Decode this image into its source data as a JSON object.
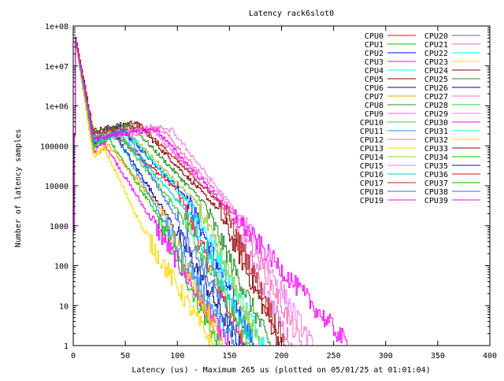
{
  "chart_data": {
    "type": "line",
    "title": "Latency rack6slot0",
    "xlabel": "Latency (us) - Maximum 265 us (plotted on 05/01/25 at 01:01:04)",
    "ylabel": "Number of latency samples",
    "xlim": [
      0,
      400
    ],
    "ylim": [
      1,
      100000000
    ],
    "yscale": "log",
    "grid": false,
    "legend_position": "top-right",
    "x_ticks": [
      0,
      50,
      100,
      150,
      200,
      250,
      300,
      350,
      400
    ],
    "y_ticks": [
      {
        "value": 1,
        "label": "1"
      },
      {
        "value": 10,
        "label": "10"
      },
      {
        "value": 100,
        "label": "100"
      },
      {
        "value": 1000,
        "label": "1000"
      },
      {
        "value": 10000,
        "label": "10000"
      },
      {
        "value": 100000,
        "label": "100000"
      },
      {
        "value": 1000000,
        "label": "1e+06"
      },
      {
        "value": 10000000,
        "label": "1e+07"
      },
      {
        "value": 100000000,
        "label": "1e+08"
      }
    ],
    "series": [
      {
        "name": "CPU0",
        "color": "#ff0000",
        "peak": 50000000,
        "shoulder_x": 40,
        "shoulder_y": 200000,
        "knee_x": 100,
        "knee_y": 8000,
        "max_x": 165
      },
      {
        "name": "CPU1",
        "color": "#00c000",
        "peak": 45000000,
        "shoulder_x": 35,
        "shoulder_y": 150000,
        "knee_x": 80,
        "knee_y": 2000,
        "max_x": 140
      },
      {
        "name": "CPU2",
        "color": "#0000ff",
        "peak": 48000000,
        "shoulder_x": 45,
        "shoulder_y": 300000,
        "knee_x": 110,
        "knee_y": 5000,
        "max_x": 175
      },
      {
        "name": "CPU3",
        "color": "#ff00ff",
        "peak": 42000000,
        "shoulder_x": 30,
        "shoulder_y": 120000,
        "knee_x": 75,
        "knee_y": 1500,
        "max_x": 150
      },
      {
        "name": "CPU4",
        "color": "#00ffff",
        "peak": 40000000,
        "shoulder_x": 50,
        "shoulder_y": 250000,
        "knee_x": 115,
        "knee_y": 3000,
        "max_x": 185
      },
      {
        "name": "CPU5",
        "color": "#8b0000",
        "peak": 52000000,
        "shoulder_x": 60,
        "shoulder_y": 400000,
        "knee_x": 140,
        "knee_y": 2500,
        "max_x": 200
      },
      {
        "name": "CPU6",
        "color": "#00008b",
        "peak": 47000000,
        "shoulder_x": 40,
        "shoulder_y": 200000,
        "knee_x": 95,
        "knee_y": 1200,
        "max_x": 160
      },
      {
        "name": "CPU7",
        "color": "#ffa500",
        "peak": 38000000,
        "shoulder_x": 35,
        "shoulder_y": 100000,
        "knee_x": 85,
        "knee_y": 2500,
        "max_x": 145
      },
      {
        "name": "CPU8",
        "color": "#228b22",
        "peak": 46000000,
        "shoulder_x": 55,
        "shoulder_y": 350000,
        "knee_x": 125,
        "knee_y": 4000,
        "max_x": 190
      },
      {
        "name": "CPU9",
        "color": "#da70d6",
        "peak": 44000000,
        "shoulder_x": 75,
        "shoulder_y": 300000,
        "knee_x": 150,
        "knee_y": 2000,
        "max_x": 210
      },
      {
        "name": "CPU10",
        "color": "#32cd32",
        "peak": 41000000,
        "shoulder_x": 45,
        "shoulder_y": 180000,
        "knee_x": 105,
        "knee_y": 1800,
        "max_x": 170
      },
      {
        "name": "CPU11",
        "color": "#1e90ff",
        "peak": 49000000,
        "shoulder_x": 40,
        "shoulder_y": 220000,
        "knee_x": 90,
        "knee_y": 1000,
        "max_x": 155
      },
      {
        "name": "CPU12",
        "color": "#ff69b4",
        "peak": 43000000,
        "shoulder_x": 85,
        "shoulder_y": 280000,
        "knee_x": 160,
        "knee_y": 1500,
        "max_x": 220
      },
      {
        "name": "CPU13",
        "color": "#ffd700",
        "peak": 36000000,
        "shoulder_x": 30,
        "shoulder_y": 90000,
        "knee_x": 70,
        "knee_y": 600,
        "max_x": 135
      },
      {
        "name": "CPU14",
        "color": "#9acd32",
        "peak": 45000000,
        "shoulder_x": 50,
        "shoulder_y": 260000,
        "knee_x": 120,
        "knee_y": 3500,
        "max_x": 180
      },
      {
        "name": "CPU15",
        "color": "#ee82ee",
        "peak": 47000000,
        "shoulder_x": 95,
        "shoulder_y": 250000,
        "knee_x": 165,
        "knee_y": 1200,
        "max_x": 230
      },
      {
        "name": "CPU16",
        "color": "#00ced1",
        "peak": 40000000,
        "shoulder_x": 45,
        "shoulder_y": 200000,
        "knee_x": 110,
        "knee_y": 2200,
        "max_x": 175
      },
      {
        "name": "CPU17",
        "color": "#b22222",
        "peak": 50000000,
        "shoulder_x": 65,
        "shoulder_y": 330000,
        "knee_x": 145,
        "knee_y": 3000,
        "max_x": 205
      },
      {
        "name": "CPU18",
        "color": "#4169e1",
        "peak": 44000000,
        "shoulder_x": 50,
        "shoulder_y": 240000,
        "knee_x": 100,
        "knee_y": 1500,
        "max_x": 165
      },
      {
        "name": "CPU19",
        "color": "#ff00ff",
        "peak": 42000000,
        "shoulder_x": 80,
        "shoulder_y": 260000,
        "knee_x": 155,
        "knee_y": 1800,
        "max_x": 265
      }
    ]
  },
  "legend_left": [
    "CPU0",
    "CPU1",
    "CPU2",
    "CPU3",
    "CPU4",
    "CPU5",
    "CPU6",
    "CPU7",
    "CPU8",
    "CPU9",
    "CPU10",
    "CPU11",
    "CPU12",
    "CPU13",
    "CPU14",
    "CPU15",
    "CPU16",
    "CPU17",
    "CPU18",
    "CPU19"
  ],
  "legend_left_colors": [
    "#ff0000",
    "#00c000",
    "#0000ff",
    "#ff00ff",
    "#00ffff",
    "#8b0000",
    "#00008b",
    "#ffa500",
    "#228b22",
    "#da70d6",
    "#32cd32",
    "#1e90ff",
    "#ff69b4",
    "#ffd700",
    "#9acd32",
    "#ee82ee",
    "#00ced1",
    "#b22222",
    "#4169e1",
    "#ff00ff"
  ],
  "legend_right": [
    "CPU20",
    "CPU21",
    "CPU22",
    "CPU23",
    "CPU24",
    "CPU25",
    "CPU26",
    "CPU27",
    "CPU28",
    "CPU29",
    "CPU30",
    "CPU31",
    "CPU32",
    "CPU33",
    "CPU34",
    "CPU35",
    "CPU36",
    "CPU37",
    "CPU38",
    "CPU39"
  ],
  "legend_right_colors": [
    "#6a5acd",
    "#da70d6",
    "#00ffff",
    "#ffd700",
    "#8b0000",
    "#228b22",
    "#00008b",
    "#ff69b4",
    "#32cd32",
    "#ee82ee",
    "#ff00ff",
    "#00ffff",
    "#ffd700",
    "#8b0000",
    "#00c000",
    "#0000ff",
    "#ff0000",
    "#00c000",
    "#4169e1",
    "#ff00ff"
  ]
}
